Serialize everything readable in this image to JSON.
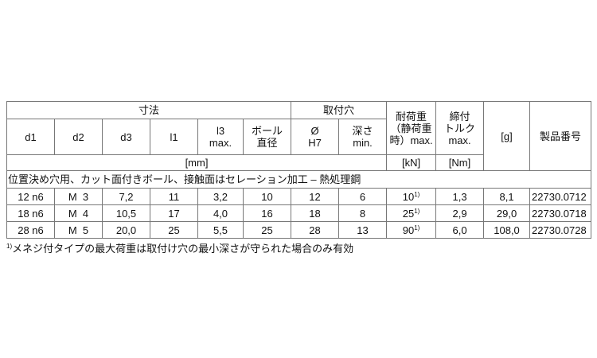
{
  "header": {
    "dimensions": "寸法",
    "mounting_hole": "取付穴",
    "load": "耐荷重（静荷重時）max.",
    "load_lines": [
      "耐荷重",
      "（静荷重",
      "時）max."
    ],
    "torque_lines": [
      "締付",
      "トルク",
      "max."
    ],
    "weight": "[g]",
    "part_no": "製品番号"
  },
  "columns": [
    {
      "l1": "d1"
    },
    {
      "l1": "d2"
    },
    {
      "l1": "d3"
    },
    {
      "l1": "l1"
    },
    {
      "l1": "l3",
      "l2": "max."
    },
    {
      "l1": "ボール",
      "l2": "直径"
    },
    {
      "l1": "Ø",
      "l2": "H7"
    },
    {
      "l1": "深さ",
      "l2": "min."
    }
  ],
  "units": {
    "mm": "[mm]",
    "kN": "[kN]",
    "Nm": "[Nm]"
  },
  "section": "位置決め穴用、カット面付きボール、接触面はセレーション加工 – 熱処理鋼",
  "rows": [
    {
      "d1": "12 n6",
      "d2": "M  3",
      "d3": "7,2",
      "l1": "11",
      "l3": "3,2",
      "ball": "10",
      "hole": "12",
      "depth": "6",
      "load": "10",
      "note": "1)",
      "torque": "1,3",
      "weight": "8,1",
      "part": "22730.0712"
    },
    {
      "d1": "18 n6",
      "d2": "M  4",
      "d3": "10,5",
      "l1": "17",
      "l3": "4,0",
      "ball": "16",
      "hole": "18",
      "depth": "8",
      "load": "25",
      "note": "1)",
      "torque": "2,9",
      "weight": "29,0",
      "part": "22730.0718"
    },
    {
      "d1": "28 n6",
      "d2": "M  5",
      "d3": "20,0",
      "l1": "25",
      "l3": "5,5",
      "ball": "25",
      "hole": "28",
      "depth": "13",
      "load": "90",
      "note": "1)",
      "torque": "6,0",
      "weight": "108,0",
      "part": "22730.0728"
    }
  ],
  "footnote": {
    "mark": "1)",
    "text": "メネジ付タイプの最大荷重は取付け穴の最小深さが守られた場合のみ有効"
  }
}
